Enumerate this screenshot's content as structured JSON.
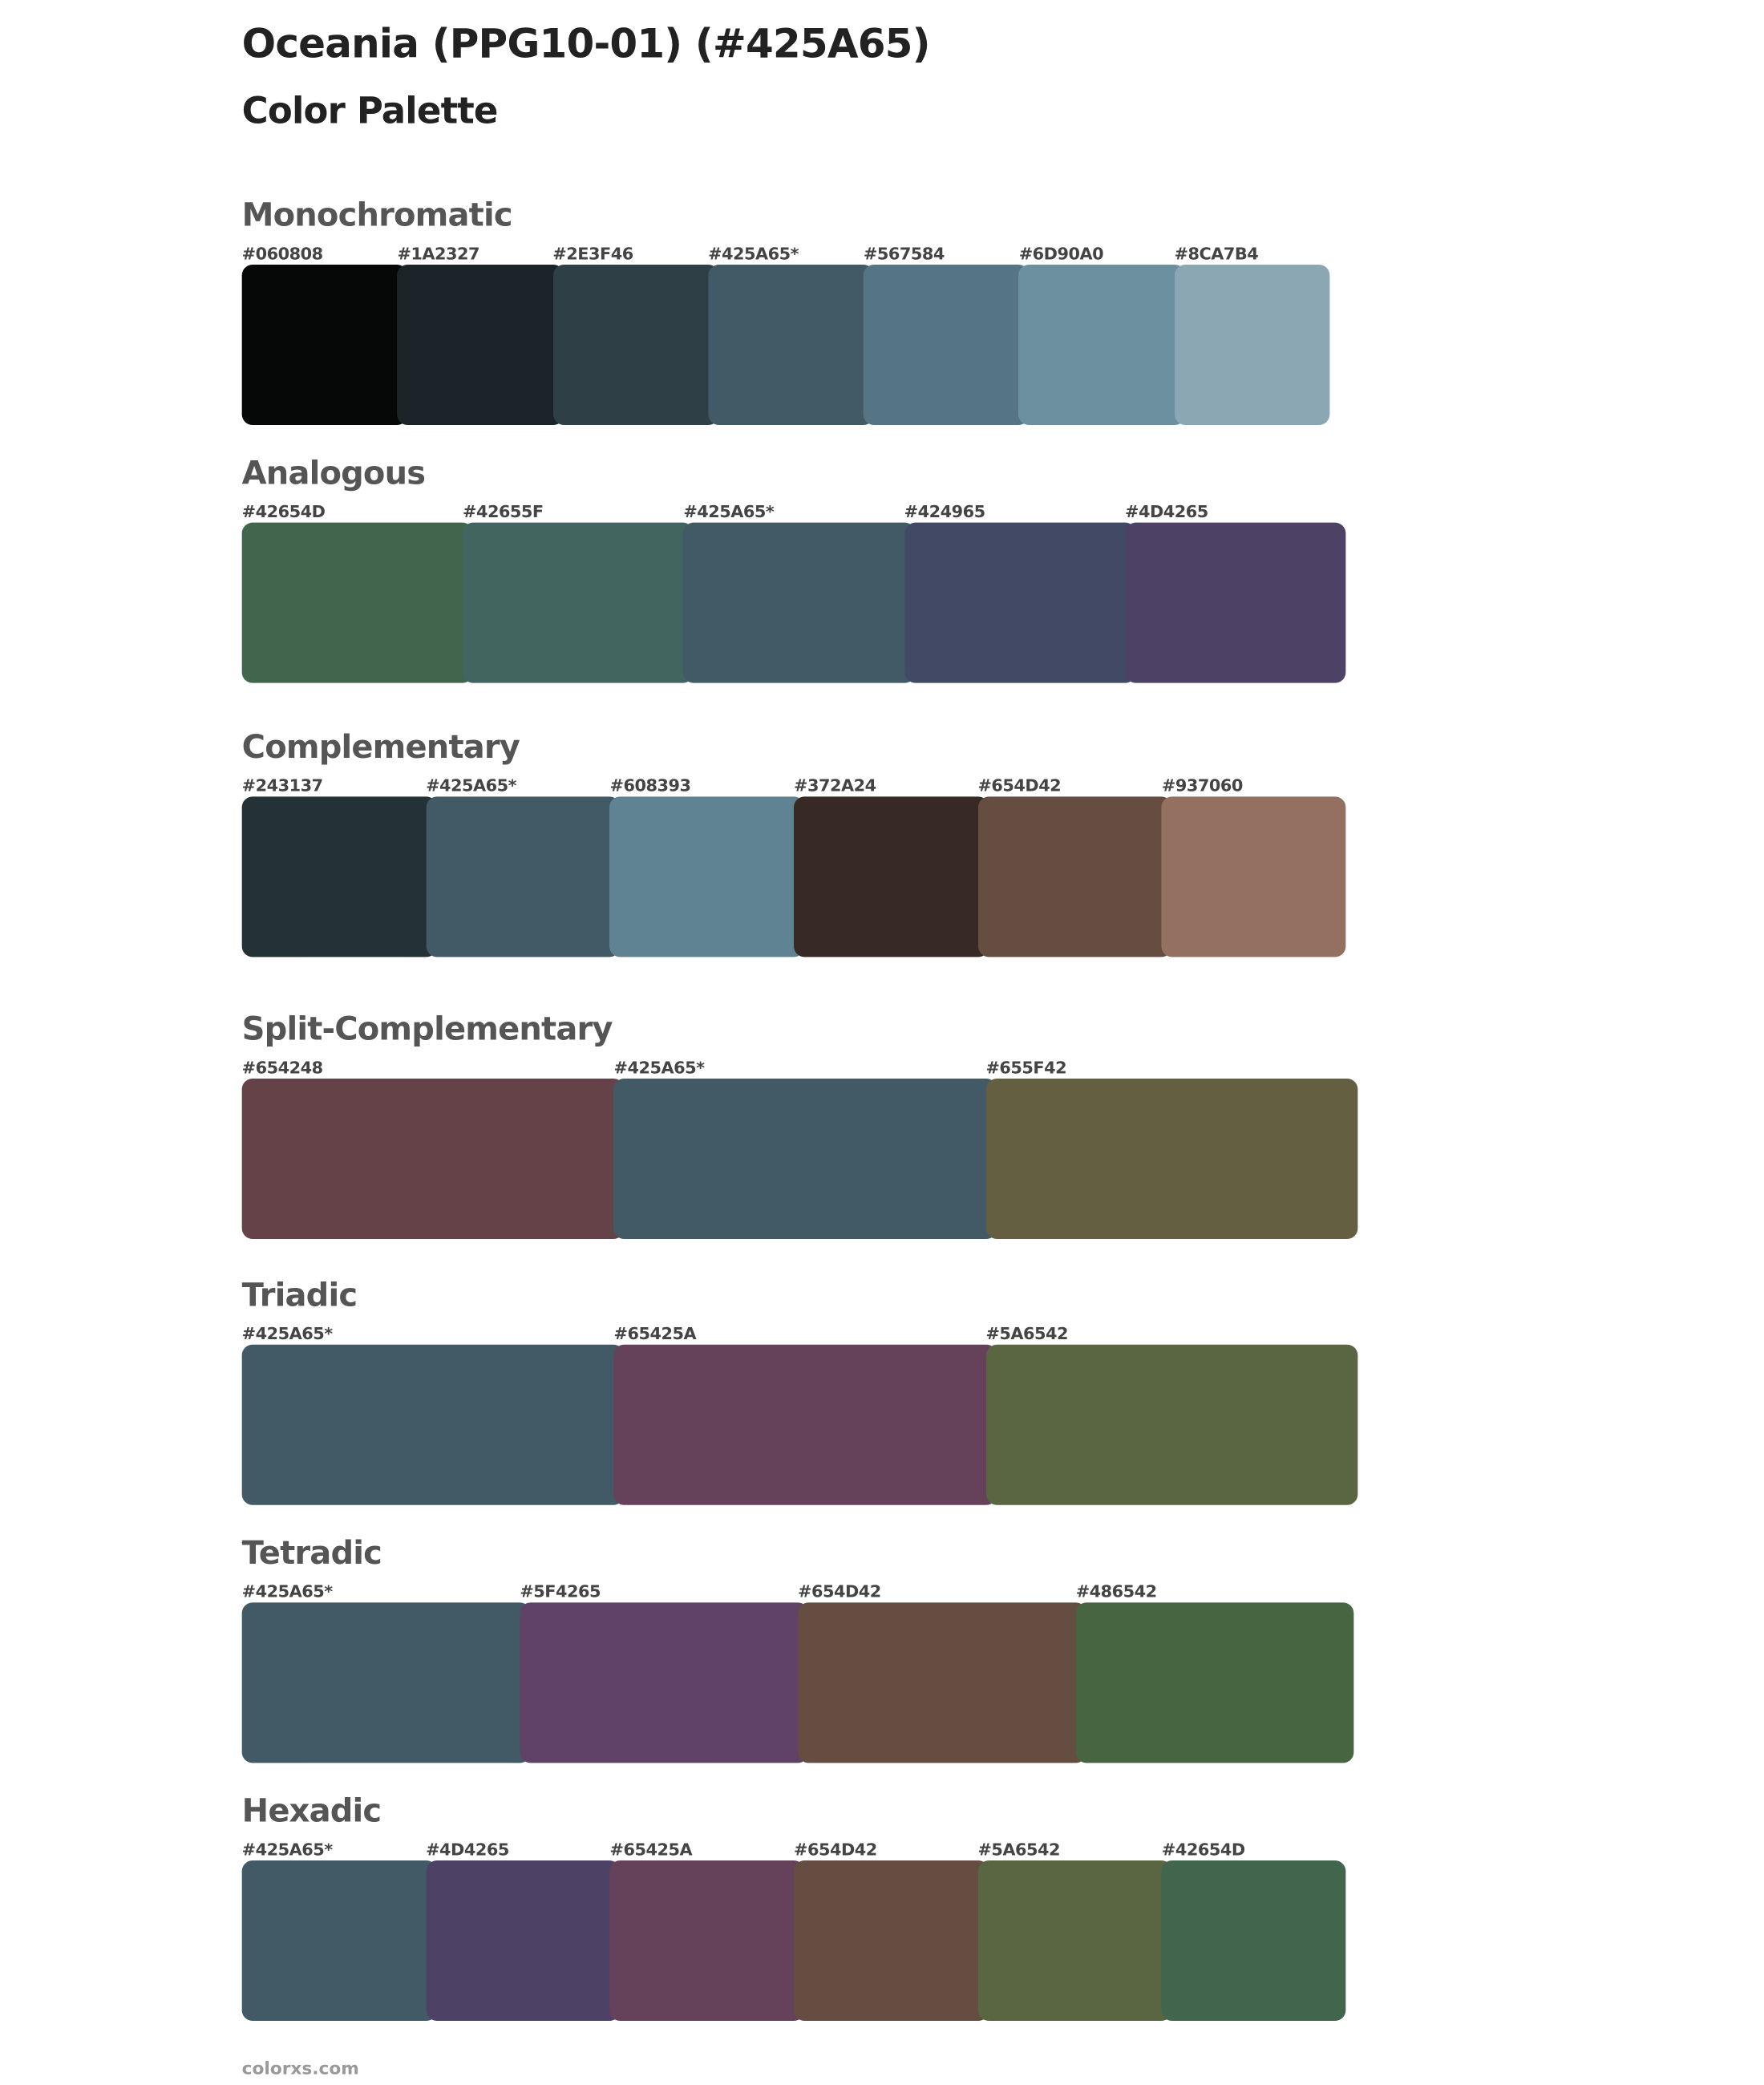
{
  "header": {
    "title": "Oceania (PPG10-01) (#425A65)",
    "subtitle": "Color Palette"
  },
  "sections": [
    {
      "title": "Monochromatic",
      "colors": [
        {
          "label": "#060808",
          "hex": "#060808"
        },
        {
          "label": "#1A2327",
          "hex": "#1A2327"
        },
        {
          "label": "#2E3F46",
          "hex": "#2E3F46"
        },
        {
          "label": "#425A65*",
          "hex": "#425A65"
        },
        {
          "label": "#567584",
          "hex": "#567584"
        },
        {
          "label": "#6D90A0",
          "hex": "#6D90A0"
        },
        {
          "label": "#8CA7B4",
          "hex": "#8CA7B4"
        }
      ]
    },
    {
      "title": "Analogous",
      "colors": [
        {
          "label": "#42654D",
          "hex": "#42654D"
        },
        {
          "label": "#42655F",
          "hex": "#42655F"
        },
        {
          "label": "#425A65*",
          "hex": "#425A65"
        },
        {
          "label": "#424965",
          "hex": "#424965"
        },
        {
          "label": "#4D4265",
          "hex": "#4D4265"
        }
      ]
    },
    {
      "title": "Complementary",
      "colors": [
        {
          "label": "#243137",
          "hex": "#243137"
        },
        {
          "label": "#425A65*",
          "hex": "#425A65"
        },
        {
          "label": "#608393",
          "hex": "#608393"
        },
        {
          "label": "#372A24",
          "hex": "#372A24"
        },
        {
          "label": "#654D42",
          "hex": "#654D42"
        },
        {
          "label": "#937060",
          "hex": "#937060"
        }
      ]
    },
    {
      "title": "Split-Complementary",
      "colors": [
        {
          "label": "#654248",
          "hex": "#654248"
        },
        {
          "label": "#425A65*",
          "hex": "#425A65"
        },
        {
          "label": "#655F42",
          "hex": "#655F42"
        }
      ]
    },
    {
      "title": "Triadic",
      "colors": [
        {
          "label": "#425A65*",
          "hex": "#425A65"
        },
        {
          "label": "#65425A",
          "hex": "#65425A"
        },
        {
          "label": "#5A6542",
          "hex": "#5A6542"
        }
      ]
    },
    {
      "title": "Tetradic",
      "colors": [
        {
          "label": "#425A65*",
          "hex": "#425A65"
        },
        {
          "label": "#5F4265",
          "hex": "#5F4265"
        },
        {
          "label": "#654D42",
          "hex": "#654D42"
        },
        {
          "label": "#486542",
          "hex": "#486542"
        }
      ]
    },
    {
      "title": "Hexadic",
      "colors": [
        {
          "label": "#425A65*",
          "hex": "#425A65"
        },
        {
          "label": "#4D4265",
          "hex": "#4D4265"
        },
        {
          "label": "#65425A",
          "hex": "#65425A"
        },
        {
          "label": "#654D42",
          "hex": "#654D42"
        },
        {
          "label": "#5A6542",
          "hex": "#5A6542"
        },
        {
          "label": "#42654D",
          "hex": "#42654D"
        }
      ]
    }
  ],
  "footer": {
    "text": "colorxs.com"
  }
}
